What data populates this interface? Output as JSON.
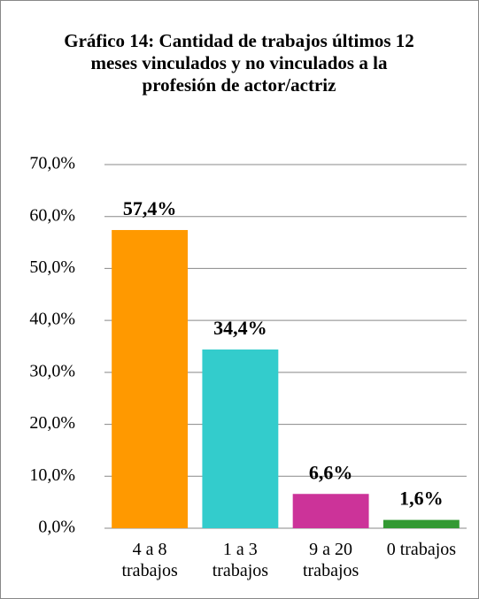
{
  "chart_data": {
    "type": "bar",
    "title": "Gráfico 14: Cantidad de trabajos últimos 12 meses vinculados y no vinculados a la profesión de actor/actriz",
    "categories": [
      "4 a 8 trabajos",
      "1 a 3 trabajos",
      "9 a 20 trabajos",
      "0 trabajos"
    ],
    "values": [
      57.4,
      34.4,
      6.6,
      1.6
    ],
    "value_labels": [
      "57,4%",
      "34,4%",
      "6,6%",
      "1,6%"
    ],
    "colors": [
      "#ff9900",
      "#33cccc",
      "#cc3399",
      "#339933"
    ],
    "ylim": [
      0,
      70
    ],
    "yticks": [
      {
        "value": 0,
        "label": "0,0%"
      },
      {
        "value": 10,
        "label": "10,0%"
      },
      {
        "value": 20,
        "label": "20,0%"
      },
      {
        "value": 30,
        "label": "30,0%"
      },
      {
        "value": 40,
        "label": "40,0%"
      },
      {
        "value": 50,
        "label": "50,0%"
      },
      {
        "value": 60,
        "label": "60,0%"
      },
      {
        "value": 70,
        "label": "70,0%"
      }
    ],
    "grid": true
  }
}
